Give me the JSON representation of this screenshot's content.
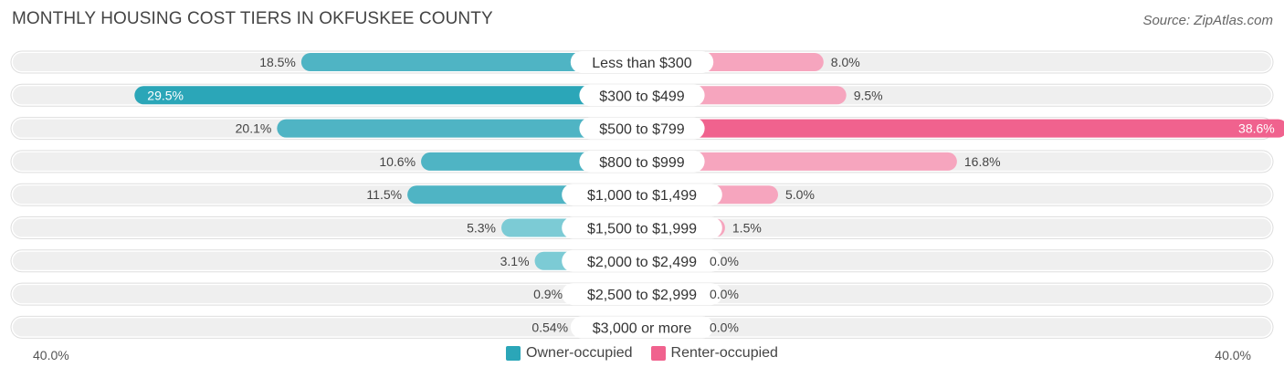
{
  "chart_data": {
    "type": "bar",
    "title": "MONTHLY HOUSING COST TIERS IN OKFUSKEE COUNTY",
    "source": "Source: ZipAtlas.com",
    "categories": [
      "Less than $300",
      "$300 to $499",
      "$500 to $799",
      "$800 to $999",
      "$1,000 to $1,499",
      "$1,500 to $1,999",
      "$2,000 to $2,499",
      "$2,500 to $2,999",
      "$3,000 or more"
    ],
    "series": [
      {
        "name": "Owner-occupied",
        "values": [
          18.5,
          29.5,
          20.1,
          10.6,
          11.5,
          5.3,
          3.1,
          0.9,
          0.54
        ],
        "labels": [
          "18.5%",
          "29.5%",
          "20.1%",
          "10.6%",
          "11.5%",
          "5.3%",
          "3.1%",
          "0.9%",
          "0.54%"
        ]
      },
      {
        "name": "Renter-occupied",
        "values": [
          8.0,
          9.5,
          38.6,
          16.8,
          5.0,
          1.5,
          0.0,
          0.0,
          0.0
        ],
        "labels": [
          "8.0%",
          "9.5%",
          "38.6%",
          "16.8%",
          "5.0%",
          "1.5%",
          "0.0%",
          "0.0%",
          "0.0%"
        ]
      }
    ],
    "axis_min_label": "40.0%",
    "axis_max_label": "40.0%",
    "xlim": [
      -40,
      40
    ]
  },
  "colors": {
    "owner": "#2ba6b8",
    "owner_light": "#7ccbd5",
    "renter": "#f0628e",
    "renter_light": "#f6a5be",
    "track": "#efefef"
  }
}
